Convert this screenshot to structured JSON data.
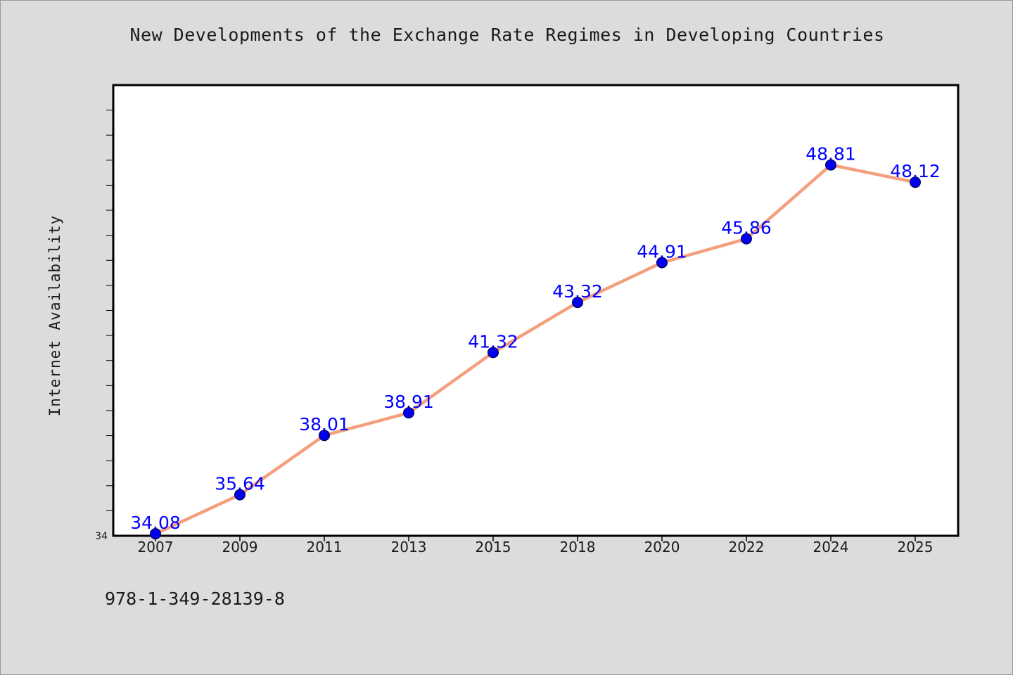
{
  "title": "New Developments of the Exchange Rate Regimes in Developing Countries",
  "isbn": "978-1-349-28139-8",
  "colors": {
    "background": "#dcdcdc",
    "plot_background": "#ffffff",
    "line": "#f4a07f",
    "marker": "#0000ee",
    "data_label": "#0000ff"
  },
  "chart_data": {
    "type": "line",
    "title": "New Developments of the Exchange Rate Regimes in Developing Countries",
    "xlabel": "",
    "ylabel": "Internet Availability",
    "categories": [
      "2007",
      "2009",
      "2011",
      "2013",
      "2015",
      "2018",
      "2020",
      "2022",
      "2024",
      "2025"
    ],
    "series": [
      {
        "values": [
          34.08,
          35.64,
          38.01,
          38.91,
          41.32,
          43.32,
          44.91,
          45.86,
          48.81,
          48.12
        ]
      }
    ],
    "data_labels": [
      "34.08",
      "35.64",
      "38.01",
      "38.91",
      "41.32",
      "43.32",
      "44.91",
      "45.86",
      "48.81",
      "48.12"
    ],
    "ylim": [
      34,
      52
    ],
    "y_tick_labels": [
      "34"
    ],
    "grid": false,
    "legend": "none"
  }
}
